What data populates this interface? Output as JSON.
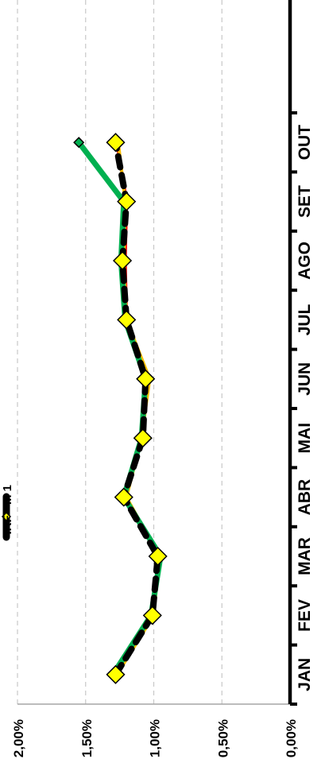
{
  "chart_data": {
    "type": "line",
    "orientation": "rotated-90-clockwise",
    "categories": [
      "JAN",
      "FEV",
      "MAR",
      "ABR",
      "MAI",
      "JUN",
      "JUL",
      "AGO",
      "SET",
      "OUT"
    ],
    "ylim": [
      0,
      0.02
    ],
    "yticks": [
      {
        "value": 0.0,
        "label": "0,00%"
      },
      {
        "value": 0.005,
        "label": "0,50%"
      },
      {
        "value": 0.01,
        "label": "1,00%"
      },
      {
        "value": 0.015,
        "label": "1,50%"
      },
      {
        "value": 0.02,
        "label": "2,00%"
      }
    ],
    "grid": true,
    "legend_position": "top",
    "series": [
      {
        "name": "",
        "color": "#ff0000",
        "style": "solid",
        "values": [
          0.0128,
          0.0101,
          0.0096,
          0.0121,
          0.011,
          0.0104,
          0.012,
          0.0121,
          0.012,
          0.0127
        ]
      },
      {
        "name": "",
        "color": "#ffc000",
        "style": "solid",
        "values": [
          0.0127,
          0.01,
          0.0096,
          0.012,
          0.0109,
          0.0103,
          0.012,
          0.0122,
          0.0121,
          0.0126
        ]
      },
      {
        "name": "",
        "color": "#00b050",
        "style": "solid-thick",
        "marker": "diamond",
        "values": [
          0.013,
          0.0102,
          0.0095,
          0.0122,
          0.0109,
          0.0106,
          0.0121,
          0.0124,
          0.0122,
          0.0155
        ]
      },
      {
        "name": "IRF - M 1",
        "color": "#000000",
        "style": "dashed-thick",
        "marker": "diamond-yellow",
        "values": [
          0.0128,
          0.0101,
          0.0097,
          0.0122,
          0.0108,
          0.0106,
          0.012,
          0.0123,
          0.012,
          0.0128
        ]
      }
    ]
  }
}
